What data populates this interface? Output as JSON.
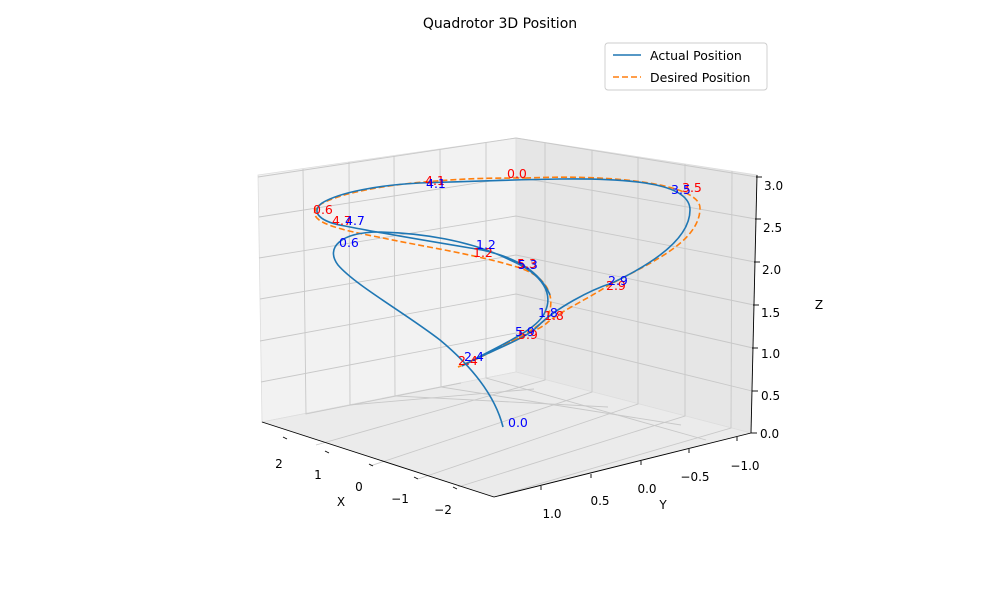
{
  "chart_data": {
    "type": "line",
    "projection": "3d",
    "title": "Quadrotor 3D Position",
    "xlabel": "X",
    "ylabel": "Y",
    "zlabel": "Z",
    "xlim": [
      -2.4,
      2.6
    ],
    "ylim": [
      -1.3,
      1.3
    ],
    "zlim": [
      0,
      3
    ],
    "x_ticks": [
      "2",
      "1",
      "0",
      "−1",
      "−2"
    ],
    "y_ticks": [
      "1.0",
      "0.5",
      "0.0",
      "−0.5",
      "−1.0"
    ],
    "z_ticks": [
      "0.0",
      "0.5",
      "1.0",
      "1.5",
      "2.0",
      "2.5",
      "3.0"
    ],
    "grid": true,
    "legend_position": "top-right",
    "series": [
      {
        "name": "Actual Position",
        "color": "#1f77b4",
        "linestyle": "solid",
        "time_labels": [
          "0.0",
          "0.6",
          "1.2",
          "1.8",
          "2.4",
          "2.9",
          "3.5",
          "4.1",
          "4.7",
          "5.3",
          "5.9"
        ],
        "label_color": "#0000ff"
      },
      {
        "name": "Desired Position",
        "color": "#ff7f0e",
        "linestyle": "dashed",
        "time_labels": [
          "0.0",
          "0.6",
          "1.2",
          "1.8",
          "2.4",
          "2.9",
          "3.5",
          "4.1",
          "4.7",
          "5.3",
          "5.9"
        ],
        "label_color": "#ff0000"
      }
    ]
  }
}
